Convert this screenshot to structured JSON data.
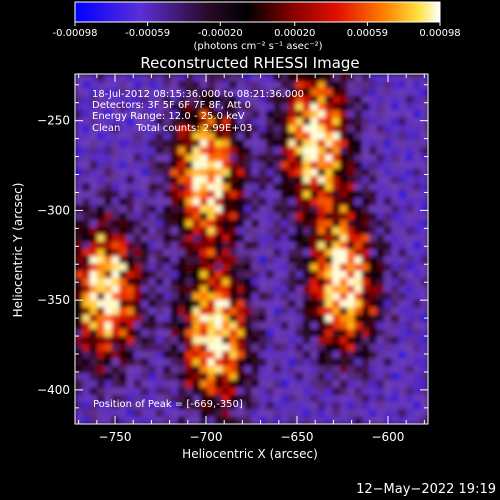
{
  "colorbar": {
    "tick_labels": [
      "-0.00098",
      "-0.00059",
      "-0.00020",
      "0.00020",
      "0.00059",
      "0.00098"
    ],
    "tick_values": [
      -0.00098,
      -0.00059,
      -0.0002,
      0.0002,
      0.00059,
      0.00098
    ],
    "range": [
      -0.00098,
      0.00098
    ],
    "units_label": "(photons cm⁻² s⁻¹ asec⁻²)",
    "colors": [
      "#0000ff",
      "#6e2fc0",
      "#140014",
      "#000000",
      "#8a0000",
      "#e21000",
      "#ff8200",
      "#ffe040",
      "#ffffff"
    ]
  },
  "chart_data": {
    "type": "heatmap",
    "title": "Reconstructed RHESSI Image",
    "xlabel": "Heliocentric X (arcsec)",
    "ylabel": "Heliocentric Y (arcsec)",
    "xlim": [
      -772,
      -578
    ],
    "ylim": [
      -419,
      -224
    ],
    "x_ticks": [
      -750,
      -700,
      -650,
      -600
    ],
    "x_tick_labels": [
      "−750",
      "−700",
      "−650",
      "−600"
    ],
    "y_ticks": [
      -250,
      -300,
      -350,
      -400
    ],
    "y_tick_labels": [
      "−250",
      "−300",
      "−350",
      "−400"
    ],
    "annotations": [
      "18-Jul-2012 08:15:36.000 to 08:21:36.000",
      "Detectors: 3F 5F 6F 7F 8F, Att 0",
      "Energy Range: 12.0 - 25.0 keV",
      "Clean     Total counts: 2.99E+03"
    ],
    "peak_label": "Position of Peak = [-669,-350]",
    "peak_position": [
      -669,
      -350
    ],
    "bright_sources": [
      {
        "x": -755,
        "y": -345
      },
      {
        "x": -700,
        "y": -280
      },
      {
        "x": -695,
        "y": -370
      },
      {
        "x": -640,
        "y": -260
      },
      {
        "x": -625,
        "y": -340
      }
    ],
    "grid": false
  },
  "footer": {
    "timestamp": "12−May−2022 19:19"
  }
}
